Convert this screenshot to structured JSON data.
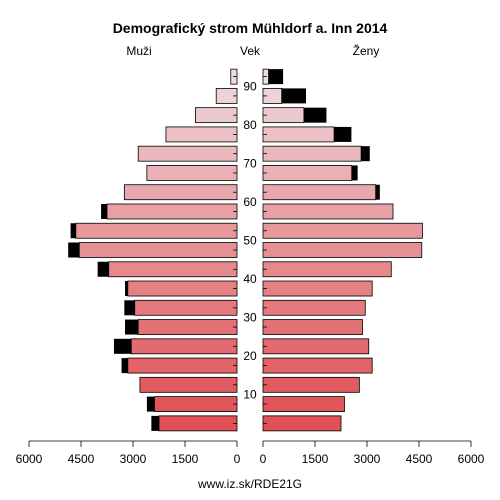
{
  "chart_data": {
    "type": "bar",
    "title": "Demografický strom Mühldorf a. Inn 2014",
    "left_label": "Muži",
    "center_label": "Vek",
    "right_label": "Ženy",
    "footer": "www.iz.sk/RDE21G",
    "age_groups": [
      "0-4",
      "5-9",
      "10-14",
      "15-19",
      "20-24",
      "25-29",
      "30-34",
      "35-39",
      "40-44",
      "45-49",
      "50-54",
      "55-59",
      "60-64",
      "65-69",
      "70-74",
      "75-79",
      "80-84",
      "85-89",
      "90+"
    ],
    "age_ticks": [
      10,
      20,
      30,
      40,
      50,
      60,
      70,
      80,
      90
    ],
    "x_ticks_left": [
      "6000",
      "4500",
      "3000",
      "1500",
      "0"
    ],
    "x_ticks_right": [
      "0",
      "1500",
      "3000",
      "4500",
      "6000"
    ],
    "xlim": [
      0,
      6000
    ],
    "series": [
      {
        "name": "Muži",
        "values": [
          2250,
          2380,
          2800,
          3150,
          3050,
          2850,
          2950,
          3150,
          3700,
          4550,
          4650,
          3750,
          3250,
          2600,
          2850,
          2050,
          1200,
          600,
          180
        ],
        "excess": [
          0,
          0,
          0,
          0,
          0,
          0,
          0,
          0,
          0,
          0,
          0,
          0,
          0,
          0,
          0,
          0,
          0,
          0,
          0
        ],
        "extra": [
          220,
          220,
          0,
          180,
          500,
          380,
          300,
          80,
          320,
          320,
          150,
          170,
          0,
          0,
          0,
          0,
          0,
          0,
          0
        ]
      },
      {
        "name": "Ženy",
        "values": [
          2250,
          2350,
          2780,
          3150,
          3050,
          2870,
          2950,
          3150,
          3700,
          4580,
          4600,
          3750,
          3250,
          2560,
          2830,
          2050,
          1180,
          540,
          160
        ],
        "extra": [
          0,
          0,
          0,
          0,
          0,
          0,
          0,
          0,
          0,
          0,
          0,
          0,
          120,
          170,
          250,
          500,
          650,
          700,
          420
        ]
      }
    ]
  }
}
